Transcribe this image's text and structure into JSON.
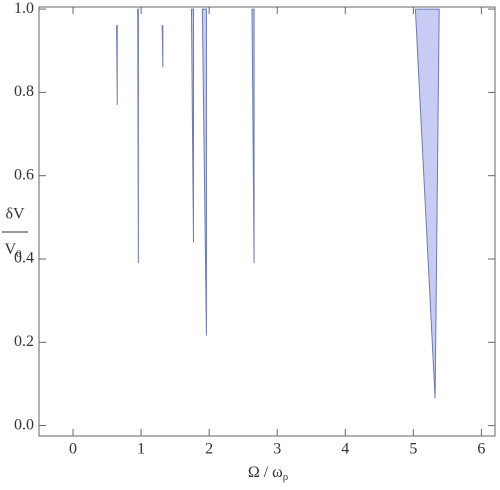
{
  "chart_data": {
    "type": "region",
    "xlabel": "Ω / ω",
    "xlabel_sub": "ρ",
    "ylabel_numerator": "δV",
    "ylabel_denominator": "V",
    "ylabel_denominator_sub": "0",
    "xlim": [
      -0.5,
      6.2
    ],
    "ylim": [
      -0.025,
      1.005
    ],
    "xticks": [
      0,
      1,
      2,
      3,
      4,
      5,
      6
    ],
    "yticks": [
      {
        "value": 0,
        "label": "0.0"
      },
      0.2,
      0.4,
      0.6,
      0.8,
      {
        "value": 1,
        "label": "1.0"
      }
    ],
    "fill": "#c8ccf5",
    "stroke": "#6e7bb0",
    "regions": [
      {
        "x": [
          5.03,
          5.38,
          5.32
        ],
        "y": [
          1,
          1,
          0.065
        ]
      },
      {
        "x": [
          1.9,
          1.96,
          1.96
        ],
        "y": [
          1,
          1,
          0.216
        ]
      },
      {
        "x": [
          1.74,
          1.77,
          1.77
        ],
        "y": [
          1,
          1,
          0.44
        ]
      },
      {
        "x": [
          2.63,
          2.66,
          2.66
        ],
        "y": [
          1,
          1,
          0.39
        ]
      },
      {
        "x": [
          0.95,
          0.96,
          0.96
        ],
        "y": [
          1,
          1,
          0.39
        ]
      },
      {
        "x": [
          0.64,
          0.65,
          0.65
        ],
        "y": [
          0.96,
          0.96,
          0.77
        ]
      },
      {
        "x": [
          1.31,
          1.32,
          1.32
        ],
        "y": [
          0.96,
          0.96,
          0.86
        ]
      }
    ]
  }
}
